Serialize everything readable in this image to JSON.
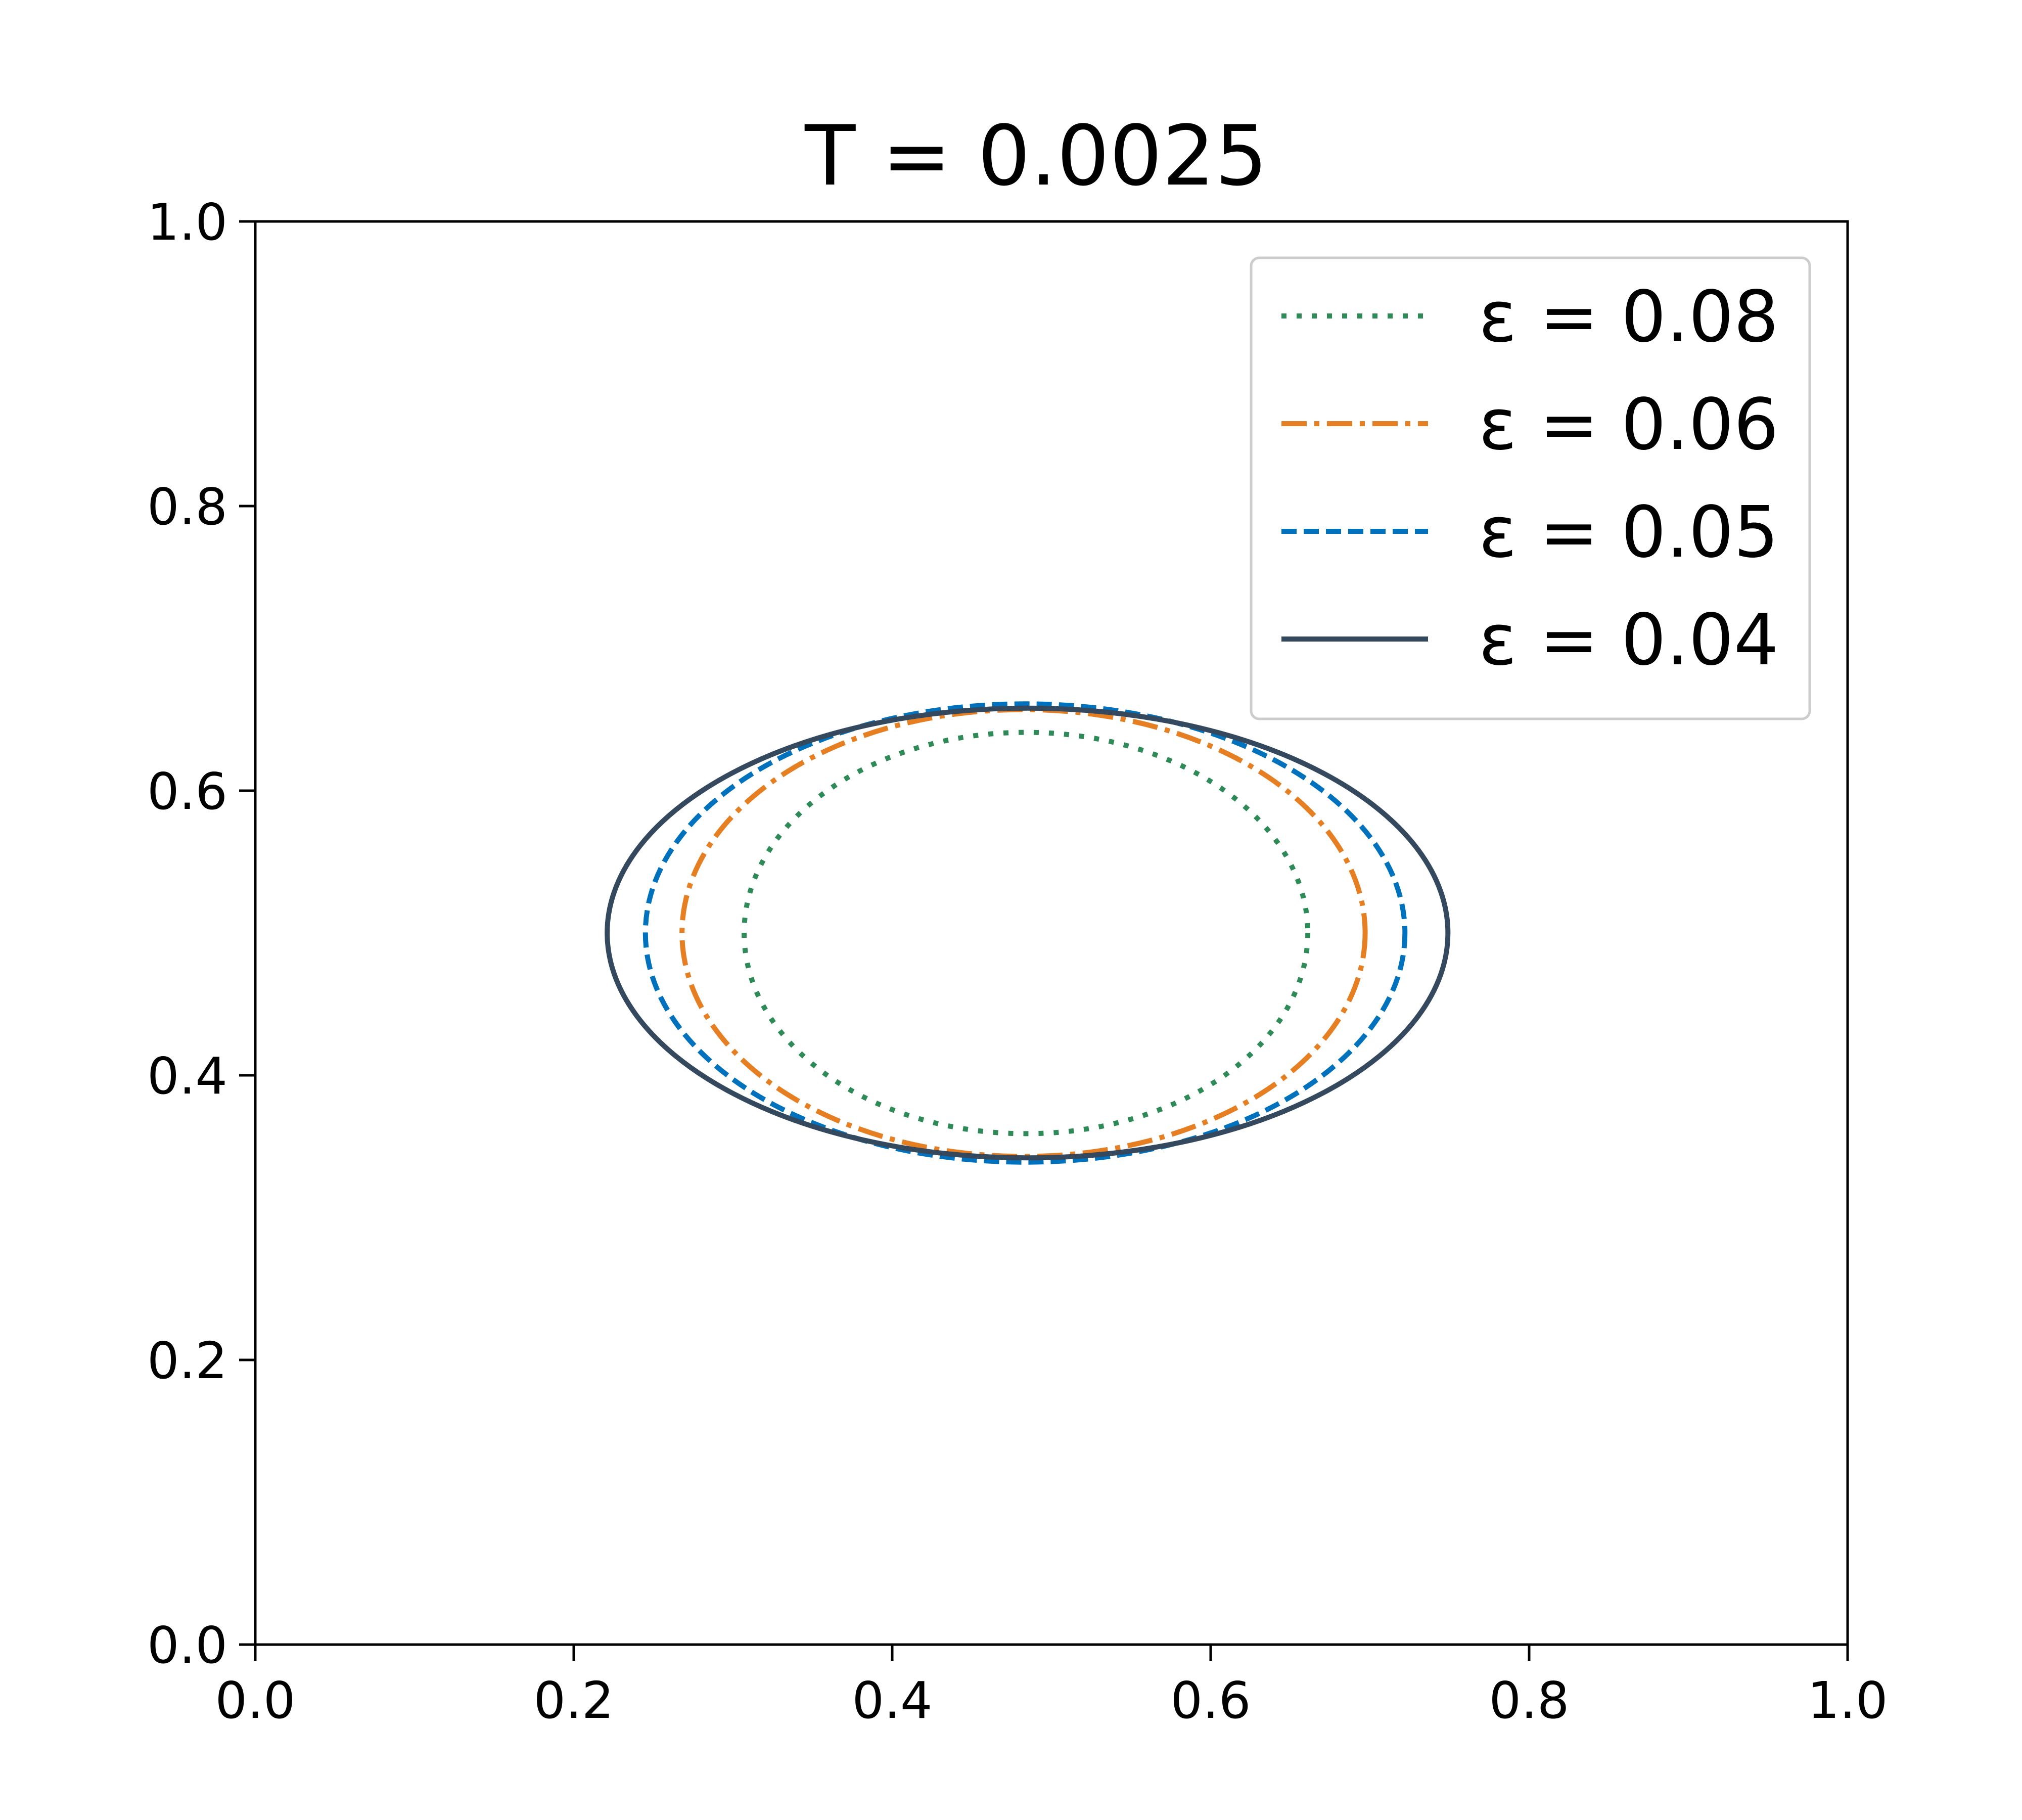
{
  "chart_data": {
    "type": "line",
    "title": "T = 0.0025",
    "xlabel": "",
    "ylabel": "",
    "xlim": [
      0.0,
      1.0
    ],
    "ylim": [
      0.0,
      1.0
    ],
    "x_ticks": [
      "0.0",
      "0.2",
      "0.4",
      "0.6",
      "0.8",
      "1.0"
    ],
    "y_ticks": [
      "0.0",
      "0.2",
      "0.4",
      "0.6",
      "0.8",
      "1.0"
    ],
    "grid": false,
    "legend_position": "top-right",
    "series": [
      {
        "name": "ε = 0.08",
        "color": "#2e8b57",
        "linestyle": "dotted",
        "shape": "closed-contour",
        "center": [
          0.485,
          0.5
        ],
        "x_extent": [
          0.307,
          0.661
        ],
        "y_extent": [
          0.359,
          0.641
        ]
      },
      {
        "name": "ε = 0.06",
        "color": "#e67e22",
        "linestyle": "dashdot",
        "shape": "closed-contour",
        "center": [
          0.482,
          0.5
        ],
        "x_extent": [
          0.268,
          0.697
        ],
        "y_extent": [
          0.343,
          0.657
        ]
      },
      {
        "name": "ε = 0.05",
        "color": "#0072bd",
        "linestyle": "dashed",
        "shape": "closed-contour",
        "center": [
          0.485,
          0.5
        ],
        "x_extent": [
          0.245,
          0.722
        ],
        "y_extent": [
          0.339,
          0.661
        ]
      },
      {
        "name": "ε = 0.04",
        "color": "#34495e",
        "linestyle": "solid",
        "shape": "closed-contour",
        "center": [
          0.474,
          0.5
        ],
        "x_extent": [
          0.221,
          0.749
        ],
        "y_extent": [
          0.342,
          0.658
        ]
      }
    ]
  }
}
